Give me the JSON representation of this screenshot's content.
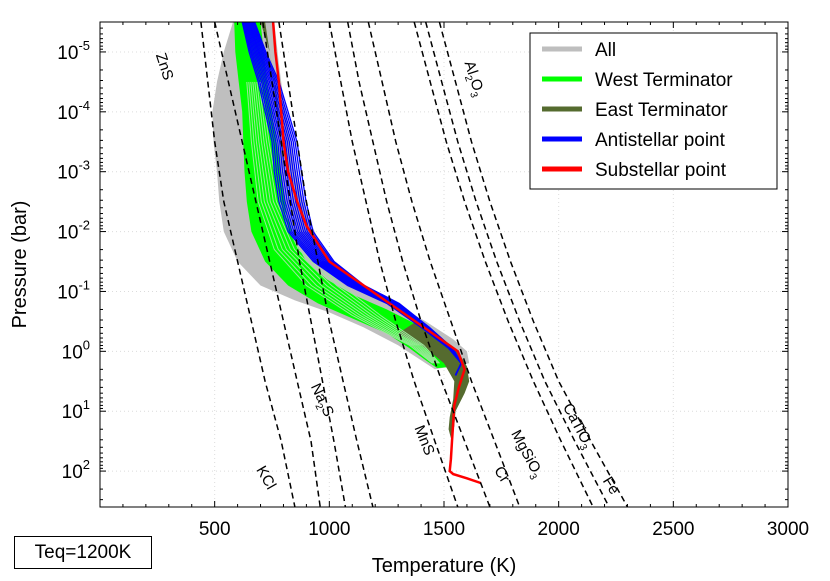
{
  "chart_data": {
    "type": "line",
    "title": "",
    "xlabel": "Temperature (K)",
    "ylabel": "Pressure (bar)",
    "xlim": [
      0,
      3000
    ],
    "ylim_log10": [
      2.6,
      -5.5
    ],
    "y_scale": "log",
    "y_inverted": true,
    "x_ticks": [
      500,
      1000,
      1500,
      2000,
      2500,
      3000
    ],
    "y_ticks_exp": [
      "-5",
      "-4",
      "-3",
      "-2",
      "-1",
      "0",
      "1",
      "2"
    ],
    "y_tick_base": "10",
    "grid": true,
    "legend_position": "top-right",
    "legend": [
      {
        "name": "All",
        "color": "#bebebe"
      },
      {
        "name": "West Terminator",
        "color": "#00ff00"
      },
      {
        "name": "East Terminator",
        "color": "#556b2f"
      },
      {
        "name": "Antistellar point",
        "color": "#0000ff"
      },
      {
        "name": "Substellar point",
        "color": "#ff0000"
      }
    ],
    "condensation_labels": [
      {
        "text": "ZnS"
      },
      {
        "text": "Al",
        "sub": "2",
        "rest": "O",
        "sub2": "3"
      },
      {
        "text": "KCl"
      },
      {
        "text": "Na",
        "sub": "2",
        "rest": "S"
      },
      {
        "text": "MnS"
      },
      {
        "text": "Cr"
      },
      {
        "text": "MgSiO",
        "sub": "3"
      },
      {
        "text": "CaTiO",
        "sub": "3"
      },
      {
        "text": "Fe"
      }
    ],
    "substellar_profile": {
      "T": [
        755,
        765,
        780,
        790,
        800,
        820,
        860,
        900,
        1000,
        1150,
        1300,
        1450,
        1560,
        1590,
        1565,
        1545,
        1540,
        1535,
        1530,
        1525,
        1540,
        1600,
        1660
      ],
      "log10P": [
        -5.5,
        -5.0,
        -4.5,
        -4.0,
        -3.5,
        -3.0,
        -2.5,
        -2.1,
        -1.5,
        -1.1,
        -0.7,
        -0.3,
        0.0,
        0.3,
        0.6,
        0.9,
        1.2,
        1.5,
        1.8,
        2.0,
        2.05,
        2.12,
        2.2
      ]
    }
  },
  "annotation": {
    "teq_label": "Teq=1200K"
  }
}
